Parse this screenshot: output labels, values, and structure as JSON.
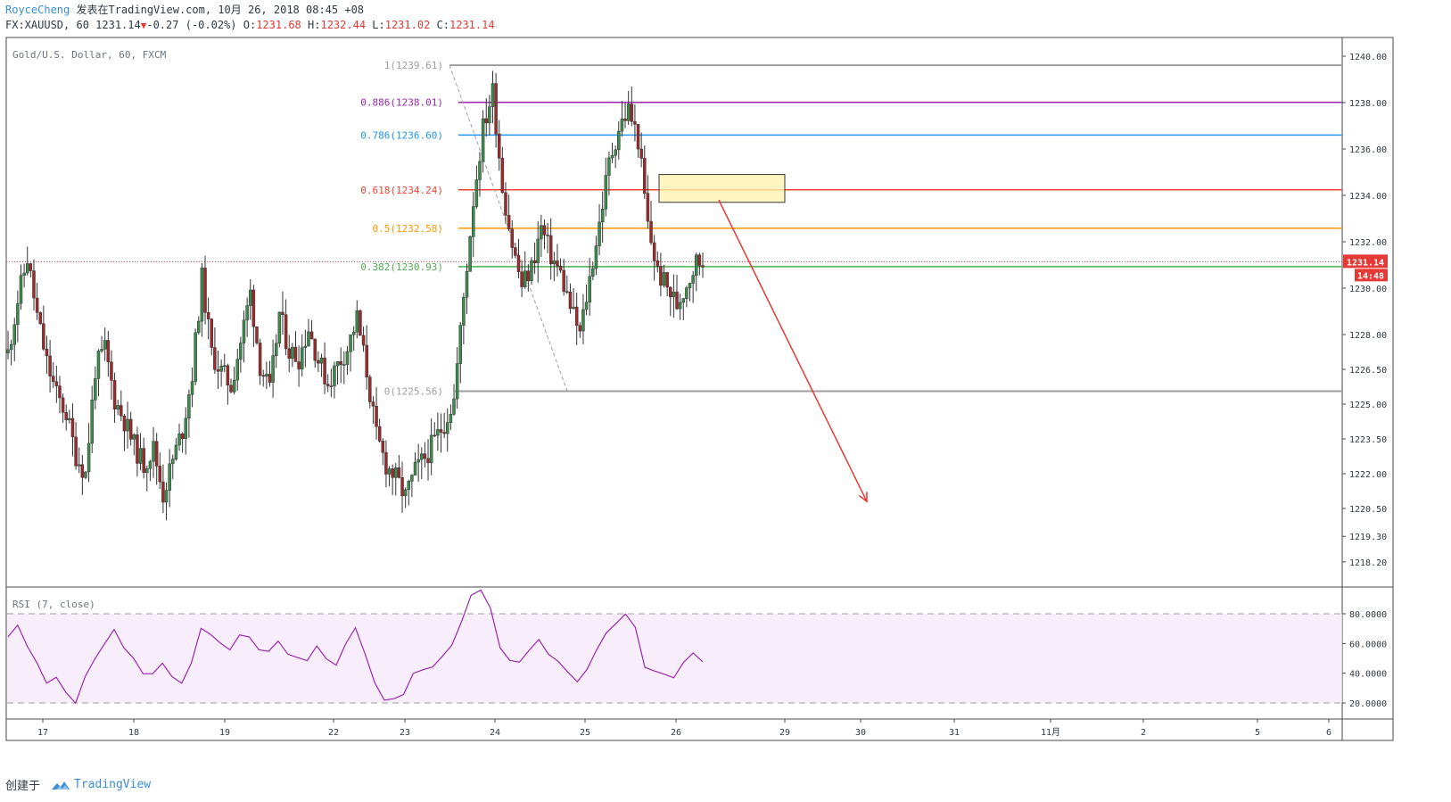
{
  "header": {
    "author": "RoyceCheng",
    "published": "发表在TradingView.com, 10月 26, 2018 08:45 +08",
    "symbol": "FX:XAUUSD, 60",
    "last": "1231.14",
    "change": "-0.27 (-0.02%)",
    "o_label": "O:",
    "o_value": "1231.68",
    "h_label": "H:",
    "h_value": "1232.44",
    "l_label": "L:",
    "l_value": "1231.02",
    "c_label": "C:",
    "c_value": "1231.14"
  },
  "footer": {
    "created": "创建于",
    "brand": "TradingView"
  },
  "chart_data": [
    {
      "type": "candlestick",
      "title": "Gold/U.S. Dollar, 60, FXCM",
      "ylim": [
        1217.5,
        1240.5
      ],
      "y_ticks": [
        "1240.00",
        "1238.00",
        "1236.00",
        "1234.00",
        "1232.00",
        "1230.00",
        "1228.00",
        "1226.50",
        "1225.00",
        "1223.50",
        "1222.00",
        "1220.50",
        "1219.30",
        "1218.20"
      ],
      "x_ticks": [
        "17",
        "18",
        "19",
        "22",
        "23",
        "24",
        "25",
        "26",
        "29",
        "30",
        "31",
        "11月",
        "2",
        "5",
        "6"
      ],
      "current_price": "1231.14",
      "countdown": "14:48",
      "price_path": [
        1227.2,
        1229.5,
        1231.3,
        1228.8,
        1226.8,
        1225.4,
        1224.6,
        1222.8,
        1222.0,
        1226.5,
        1227.4,
        1225.2,
        1224.3,
        1223.2,
        1222.4,
        1223.1,
        1221.1,
        1222.6,
        1223.9,
        1226.3,
        1230.4,
        1227.2,
        1226.4,
        1225.8,
        1227.7,
        1229.8,
        1226.7,
        1225.5,
        1228.9,
        1227.3,
        1227.0,
        1228.3,
        1226.9,
        1225.9,
        1226.7,
        1227.4,
        1228.7,
        1226.4,
        1223.6,
        1222.4,
        1221.8,
        1221.0,
        1222.1,
        1222.7,
        1223.4,
        1224.2,
        1225.2,
        1229.6,
        1233.8,
        1236.9,
        1238.5,
        1234.4,
        1231.9,
        1230.1,
        1230.9,
        1232.6,
        1231.4,
        1230.6,
        1229.2,
        1228.0,
        1230.4,
        1232.8,
        1235.4,
        1236.9,
        1237.7,
        1236.4,
        1232.7,
        1230.7,
        1230.0,
        1229.3,
        1230.2,
        1231.14
      ],
      "fibonacci": [
        {
          "label": "1(1239.61)",
          "level": 1239.61,
          "color": "#9e9e9e"
        },
        {
          "label": "0.886(1238.01)",
          "level": 1238.01,
          "color": "#9c27b0"
        },
        {
          "label": "0.786(1236.60)",
          "level": 1236.6,
          "color": "#2196f3"
        },
        {
          "label": "0.618(1234.24)",
          "level": 1234.24,
          "color": "#f44336"
        },
        {
          "label": "0.5(1232.58)",
          "level": 1232.58,
          "color": "#ff9800"
        },
        {
          "label": "0.382(1230.93)",
          "level": 1230.93,
          "color": "#4caf50"
        },
        {
          "label": "0(1225.56)",
          "level": 1225.56,
          "color": "#9e9e9e"
        }
      ],
      "zone": {
        "top": 1234.9,
        "bottom": 1233.7
      },
      "arrow": {
        "from": 1233.8,
        "to": 1220.8
      }
    },
    {
      "type": "line",
      "title": "RSI (7, close)",
      "ylim": [
        15,
        95
      ],
      "y_ticks": [
        "80.0000",
        "60.0000",
        "40.0000",
        "20.0000"
      ],
      "bands": [
        80,
        20
      ],
      "values": [
        65,
        70,
        58,
        45,
        33,
        38,
        30,
        22,
        35,
        50,
        62,
        68,
        57,
        48,
        42,
        39,
        45,
        38,
        35,
        48,
        72,
        65,
        58,
        54,
        66,
        62,
        55,
        52,
        60,
        55,
        50,
        46,
        57,
        48,
        44,
        58,
        68,
        52,
        32,
        22,
        25,
        28,
        38,
        42,
        46,
        52,
        60,
        75,
        92,
        95,
        85,
        55,
        48,
        50,
        55,
        60,
        54,
        50,
        42,
        35,
        45,
        58,
        66,
        72,
        78,
        70,
        44,
        40,
        38,
        35,
        48,
        55,
        50
      ]
    }
  ]
}
